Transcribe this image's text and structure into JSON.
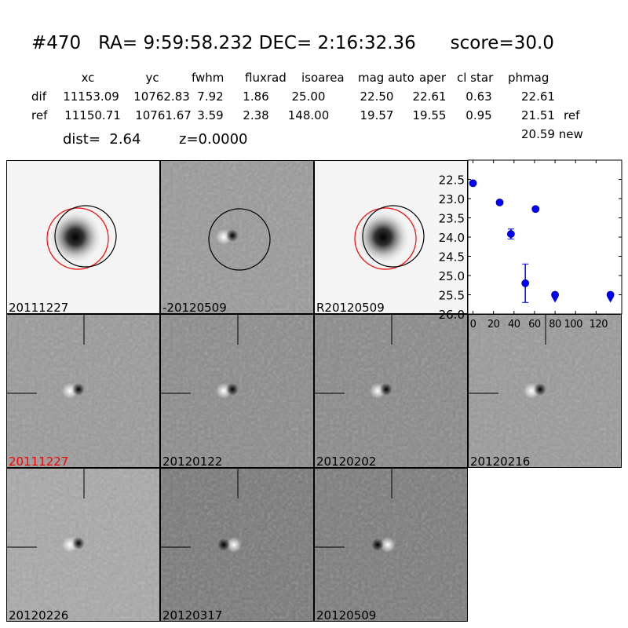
{
  "header": {
    "title": "#470   RA= 9:59:58.232 DEC= 2:16:32.36      score=30.0",
    "columns": [
      "xc",
      "yc",
      "fwhm",
      "fluxrad",
      "isoarea",
      "mag auto",
      "aper",
      "cl star",
      "phmag"
    ],
    "rows": [
      {
        "label": "dif",
        "values": [
          "11153.09",
          "10762.83",
          "7.92",
          "1.86",
          "25.00",
          "22.50",
          "22.61",
          "0.63",
          "22.61"
        ]
      },
      {
        "label": "ref",
        "values": [
          "11150.71",
          "10761.67",
          "3.59",
          "2.38",
          "148.00",
          "19.57",
          "19.55",
          "0.95",
          "21.51"
        ]
      }
    ],
    "ref_tag": "ref",
    "new_value": "20.59 new",
    "dist": "dist=  2.64",
    "z": "z=0.0000"
  },
  "stamps": [
    {
      "label": "20111227",
      "kind": "ref",
      "label_color": "#000000"
    },
    {
      "label": "-20120509",
      "kind": "diff"
    },
    {
      "label": "R20120509",
      "kind": "ref"
    },
    {
      "label": "20111227",
      "kind": "epoch",
      "label_color": "#ff0000"
    },
    {
      "label": "20120122",
      "kind": "epoch"
    },
    {
      "label": "20120202",
      "kind": "epoch"
    },
    {
      "label": "20120216",
      "kind": "epoch"
    },
    {
      "label": "20120226",
      "kind": "epoch"
    },
    {
      "label": "20120317",
      "kind": "epoch"
    },
    {
      "label": "20120509",
      "kind": "epoch"
    }
  ],
  "chart_data": {
    "type": "scatter",
    "xlim": [
      -5,
      145
    ],
    "ylim": [
      26.0,
      22.0
    ],
    "y_inverted": true,
    "xticks": [
      "0",
      "20",
      "40",
      "60",
      "80",
      "100",
      "120"
    ],
    "yticks": [
      "22.5",
      "23.0",
      "23.5",
      "24.0",
      "24.5",
      "25.0",
      "25.5",
      "26.0"
    ],
    "marker_color": "#0000ff",
    "points": [
      {
        "x": 0,
        "y": 22.6,
        "err": 0.02
      },
      {
        "x": 26,
        "y": 23.1,
        "err": 0.03
      },
      {
        "x": 37,
        "y": 23.92,
        "err": 0.13
      },
      {
        "x": 51,
        "y": 25.2,
        "err": 0.5
      },
      {
        "x": 61,
        "y": 23.27,
        "err": 0.05
      },
      {
        "x": 80,
        "y": 25.5,
        "upper_limit": true
      },
      {
        "x": 134,
        "y": 25.5,
        "upper_limit": true
      }
    ]
  }
}
